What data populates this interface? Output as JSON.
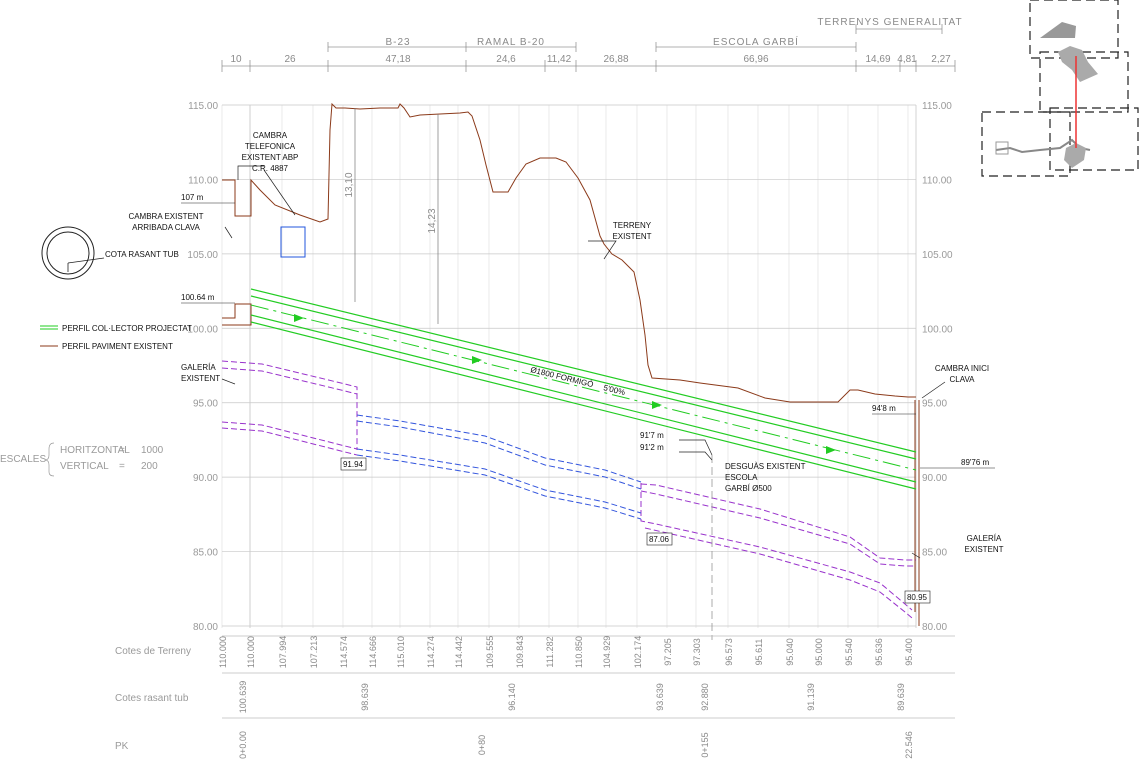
{
  "top_dims": {
    "values": [
      "10",
      "26",
      "47,18",
      "24,6",
      "11,42",
      "26,88",
      "66,96",
      "14,69",
      "4,81",
      "2,27"
    ],
    "labels": [
      "B-23",
      "RAMAL B-20",
      "ESCOLA GARBÍ",
      "TERRENYS GENERALITAT"
    ]
  },
  "axis": {
    "ticks": [
      "115.00",
      "110.00",
      "105.00",
      "100.00",
      "95.00",
      "90.00",
      "85.00",
      "80.00"
    ],
    "values": [
      115,
      110,
      105,
      100,
      95,
      90,
      85,
      80
    ]
  },
  "annotations": {
    "cambra_telefonica": [
      "CAMBRA",
      "TELEFONICA",
      "EXISTENT ABP",
      "C.R. 4887"
    ],
    "cambra_existent": [
      "CAMBRA EXISTENT",
      "ARRIBADA CLAVA"
    ],
    "cota_rasant": "COTA RASANT TUB",
    "terreny": [
      "TERRENY",
      "EXISTENT"
    ],
    "galeria_left": [
      "GALERÍA",
      "EXISTENT"
    ],
    "galeria_right": [
      "GALERÍA",
      "EXISTENT"
    ],
    "cambra_inici": [
      "CAMBRA INICI",
      "CLAVA"
    ],
    "desguas": [
      "DESGUÀS EXISTENT",
      "ESCOLA",
      "GARBÍ Ø500"
    ],
    "pipe_label": "Ø1800 FORMIGÓ",
    "slope": "5'00%",
    "lev_107": "107 m",
    "lev_10064": "100.64 m",
    "lev_948": "94'8 m",
    "lev_8976": "89'76 m",
    "lev_917": "91'7 m",
    "lev_912": "91'2 m",
    "box_9194": "91.94",
    "box_8706": "87.06",
    "box_8095": "80.95",
    "dim_1310": "13,10",
    "dim_1423": "14,23"
  },
  "legend": {
    "green": "PERFIL COL·LECTOR PROJECTAT",
    "brown": "PERFIL PAVIMENT EXISTENT",
    "green_color": "#22cc22",
    "brown_color": "#8b3a1a"
  },
  "escales": {
    "title": "ESCALES",
    "h_label": "HORITZONTAL",
    "h_eq": "=",
    "h_val": "1000",
    "v_label": "VERTICAL",
    "v_eq": "=",
    "v_val": "200"
  },
  "rows": {
    "terreny_label": "Cotes de Terreny",
    "terreny": [
      "110.000",
      "110.000",
      "107.994",
      "107.213",
      "114.574",
      "114.666",
      "115.010",
      "114.274",
      "114.442",
      "109.555",
      "109.843",
      "111.282",
      "110.850",
      "104.929",
      "102.174",
      "97.205",
      "97.303",
      "96.573",
      "95.611",
      "95.040",
      "95.000",
      "95.540",
      "95.636",
      "95.400"
    ],
    "rasant_label": "Cotes rasant tub",
    "rasant": [
      "100.639",
      "98.639",
      "96.140",
      "93.639",
      "92.880",
      "91.139",
      "89.639"
    ],
    "pk_label": "PK",
    "pk": [
      "0+0.00",
      "0+80",
      "0+155",
      "22.546"
    ]
  }
}
